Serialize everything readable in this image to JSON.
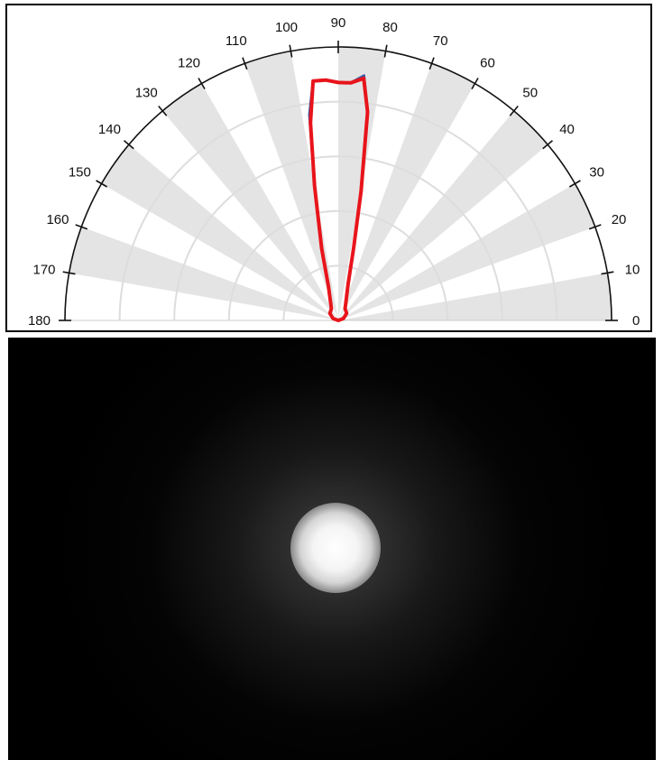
{
  "chart_data": {
    "type": "polar",
    "angular_range": [
      0,
      180
    ],
    "angular_unit": "degrees",
    "angle_labels": [
      "0",
      "10",
      "20",
      "30",
      "40",
      "50",
      "60",
      "70",
      "80",
      "90",
      "100",
      "110",
      "120",
      "130",
      "140",
      "150",
      "160",
      "170",
      "180"
    ],
    "radial_range": [
      0,
      1
    ],
    "radial_gridlines": [
      0.2,
      0.4,
      0.6,
      0.8,
      1.0
    ],
    "alternating_sector_shading": true,
    "title": "",
    "xlabel": "",
    "ylabel": "",
    "colors": {
      "series_1": "#3b5fa8",
      "series_2": "#e8141b",
      "shading": "#e4e4e4",
      "grid": "#dddddd"
    },
    "series": [
      {
        "color": "#3b5fa8",
        "points": [
          {
            "angle": 0,
            "r": 0
          },
          {
            "angle": 20,
            "r": 0.02
          },
          {
            "angle": 40,
            "r": 0.04
          },
          {
            "angle": 60,
            "r": 0.05
          },
          {
            "angle": 75,
            "r": 0.14
          },
          {
            "angle": 78,
            "r": 0.27
          },
          {
            "angle": 80,
            "r": 0.48
          },
          {
            "angle": 82,
            "r": 0.77
          },
          {
            "angle": 84,
            "r": 0.9
          },
          {
            "angle": 87,
            "r": 0.87
          },
          {
            "angle": 90,
            "r": 0.87
          },
          {
            "angle": 93,
            "r": 0.88
          },
          {
            "angle": 96,
            "r": 0.88
          },
          {
            "angle": 98,
            "r": 0.76
          },
          {
            "angle": 100,
            "r": 0.5
          },
          {
            "angle": 103,
            "r": 0.27
          },
          {
            "angle": 106,
            "r": 0.13
          },
          {
            "angle": 120,
            "r": 0.05
          },
          {
            "angle": 140,
            "r": 0.04
          },
          {
            "angle": 160,
            "r": 0.02
          },
          {
            "angle": 180,
            "r": 0
          }
        ]
      },
      {
        "color": "#e8141b",
        "points": [
          {
            "angle": 0,
            "r": 0
          },
          {
            "angle": 20,
            "r": 0.02
          },
          {
            "angle": 40,
            "r": 0.04
          },
          {
            "angle": 60,
            "r": 0.05
          },
          {
            "angle": 75,
            "r": 0.14
          },
          {
            "angle": 78,
            "r": 0.27
          },
          {
            "angle": 80,
            "r": 0.48
          },
          {
            "angle": 82,
            "r": 0.77
          },
          {
            "angle": 84,
            "r": 0.89
          },
          {
            "angle": 87,
            "r": 0.87
          },
          {
            "angle": 90,
            "r": 0.87
          },
          {
            "angle": 93,
            "r": 0.88
          },
          {
            "angle": 96,
            "r": 0.88
          },
          {
            "angle": 98,
            "r": 0.73
          },
          {
            "angle": 100,
            "r": 0.5
          },
          {
            "angle": 103,
            "r": 0.27
          },
          {
            "angle": 106,
            "r": 0.13
          },
          {
            "angle": 120,
            "r": 0.05
          },
          {
            "angle": 140,
            "r": 0.04
          },
          {
            "angle": 160,
            "r": 0.02
          },
          {
            "angle": 180,
            "r": 0
          }
        ]
      }
    ]
  },
  "beam_image": {
    "background_color": "#000000",
    "spot_color": "#ffffff",
    "halo_color": "#767676"
  }
}
